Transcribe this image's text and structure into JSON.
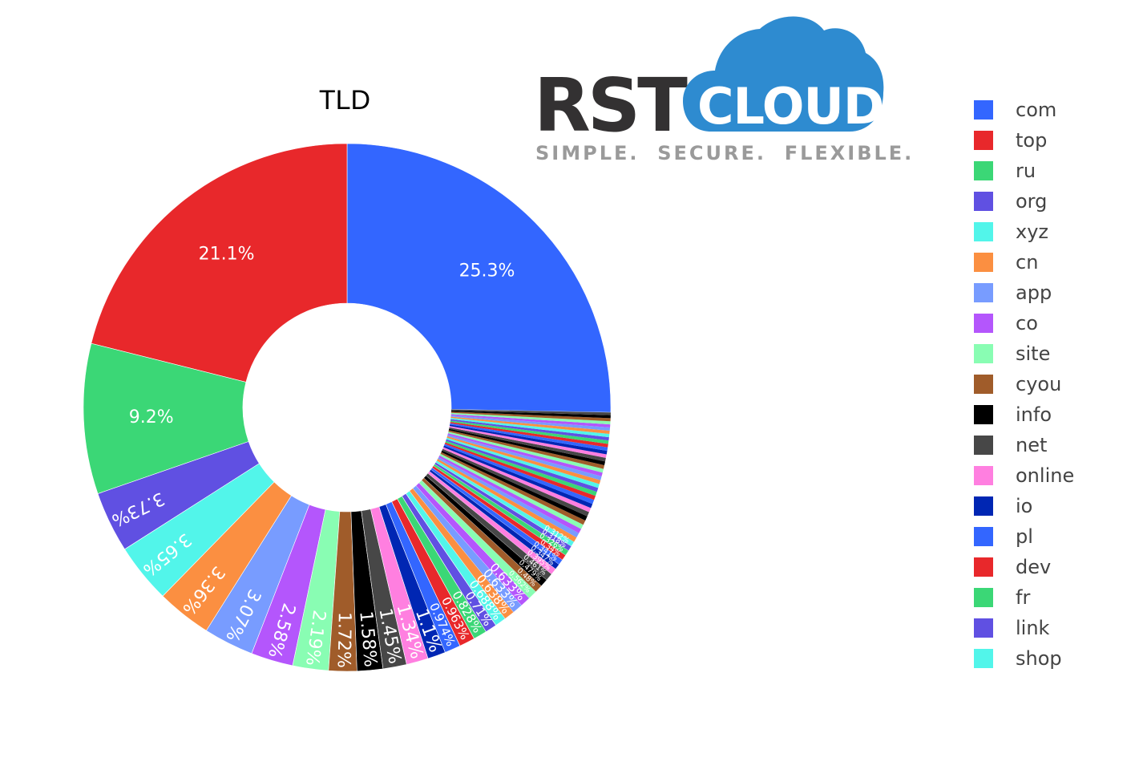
{
  "logo": {
    "brand_left": "RST",
    "brand_right": "CLOUD",
    "tagline": "SIMPLE.  SECURE.  FLEXIBLE.",
    "colors": {
      "dark": "#333132",
      "cloud": "#2e8bd0",
      "tagline": "#9a9a9a"
    }
  },
  "chart_data": {
    "type": "pie",
    "subtype": "donut",
    "title": "TLD",
    "hole": 0.4,
    "direction": "counterclockwise",
    "legend_position": "right",
    "categories": [
      "com",
      "top",
      "ru",
      "org",
      "xyz",
      "cn",
      "app",
      "co",
      "site",
      "cyou",
      "info",
      "net",
      "online",
      "io",
      "pl",
      "dev",
      "fr",
      "link",
      "shop"
    ],
    "values": [
      25.3,
      21.1,
      9.2,
      3.73,
      3.65,
      3.36,
      3.07,
      2.58,
      2.19,
      1.72,
      1.58,
      1.45,
      1.34,
      1.1,
      0.974,
      0.963,
      0.828,
      0.71,
      0.688
    ],
    "labels": [
      "25.3%",
      "21.1%",
      "9.2%",
      "3.73%",
      "3.65%",
      "3.36%",
      "3.07%",
      "2.58%",
      "2.19%",
      "1.72%",
      "1.58%",
      "1.45%",
      "1.34%",
      "1.1%",
      "0.974%",
      "0.963%",
      "0.828%",
      "0.71%",
      "0.688%"
    ],
    "tail_values": [
      0.638,
      0.633,
      0.633,
      0.562,
      0.48,
      0.479,
      0.461,
      0.395,
      0.347,
      0.341,
      0.34,
      0.326,
      0.318,
      0.312
    ],
    "tail_labels": [
      "0.638%",
      "0.633%",
      "0.633%",
      "0.562%",
      "0.48%",
      "0.479%",
      "0.461%",
      "0.395%",
      "0.347%",
      "0.341%",
      "0.34%",
      "0.326%",
      "0.318%",
      "0.312%"
    ],
    "remaining_tiny_slices_total": 1.0,
    "colors": [
      "#3366ff",
      "#e8282b",
      "#3bd776",
      "#6050e2",
      "#52f5ea",
      "#fb8f41",
      "#789cff",
      "#b456fc",
      "#89fdb3",
      "#a05c2a",
      "#000000",
      "#474747",
      "#ff7fe0",
      "#0026b3",
      "#3366ff",
      "#e8282b",
      "#3bd776",
      "#6050e2",
      "#52f5ea"
    ]
  },
  "legend": {
    "items": [
      {
        "label": "com",
        "color": "#3366ff"
      },
      {
        "label": "top",
        "color": "#e8282b"
      },
      {
        "label": "ru",
        "color": "#3bd776"
      },
      {
        "label": "org",
        "color": "#6050e2"
      },
      {
        "label": "xyz",
        "color": "#52f5ea"
      },
      {
        "label": "cn",
        "color": "#fb8f41"
      },
      {
        "label": "app",
        "color": "#789cff"
      },
      {
        "label": "co",
        "color": "#b456fc"
      },
      {
        "label": "site",
        "color": "#89fdb3"
      },
      {
        "label": "cyou",
        "color": "#a05c2a"
      },
      {
        "label": "info",
        "color": "#000000"
      },
      {
        "label": "net",
        "color": "#474747"
      },
      {
        "label": "online",
        "color": "#ff7fe0"
      },
      {
        "label": "io",
        "color": "#0026b3"
      },
      {
        "label": "pl",
        "color": "#3366ff"
      },
      {
        "label": "dev",
        "color": "#e8282b"
      },
      {
        "label": "fr",
        "color": "#3bd776"
      },
      {
        "label": "link",
        "color": "#6050e2"
      },
      {
        "label": "shop",
        "color": "#52f5ea"
      }
    ]
  }
}
